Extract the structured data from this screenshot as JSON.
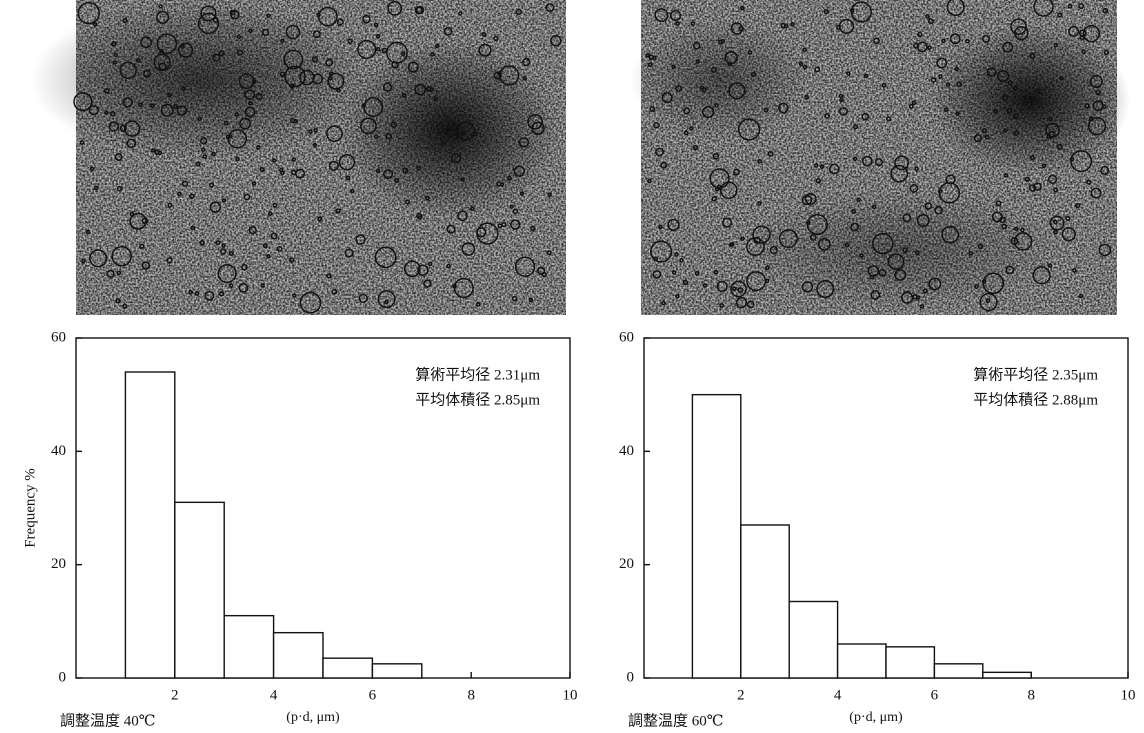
{
  "chart_data": [
    {
      "type": "histogram",
      "bins": [
        1,
        2,
        3,
        4,
        5,
        6,
        7
      ],
      "values": [
        54,
        31,
        11,
        8,
        3.5,
        2.5
      ],
      "color": "#ffffff",
      "xlim": [
        0,
        10
      ],
      "ylim": [
        0,
        60
      ],
      "xticks": [
        2,
        4,
        6,
        8,
        10
      ],
      "yticks": [
        0,
        20,
        40,
        60
      ],
      "ylabel": "Frequency %",
      "xlabel": "(p·d, μm)",
      "caption": "調整温度 40℃",
      "annotations": [
        "算術平均径 2.31μm",
        "平均体積径 2.85μm"
      ]
    },
    {
      "type": "histogram",
      "bins": [
        1,
        2,
        3,
        4,
        5,
        6,
        7,
        8
      ],
      "values": [
        50,
        27,
        13.5,
        6,
        5.5,
        2.5,
        1
      ],
      "color": "#ffffff",
      "xlim": [
        0,
        10
      ],
      "ylim": [
        0,
        60
      ],
      "xticks": [
        2,
        4,
        6,
        8,
        10
      ],
      "yticks": [
        0,
        20,
        40,
        60
      ],
      "xlabel": "(p·d, μm)",
      "caption": "調整温度 60℃",
      "annotations": [
        "算術平均径 2.35μm",
        "平均体積径 2.88μm"
      ]
    }
  ]
}
